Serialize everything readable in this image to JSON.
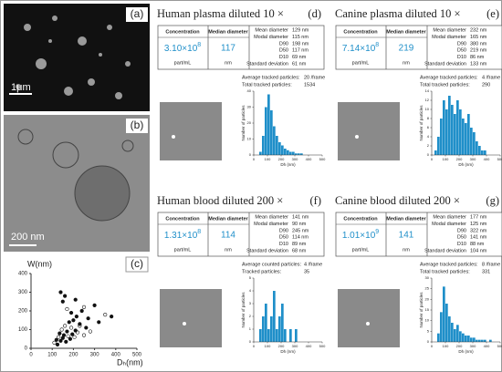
{
  "micrographs": [
    {
      "label": "(a)",
      "scale_bar": "1μm"
    },
    {
      "label": "(b)",
      "scale_bar": "200 nm"
    }
  ],
  "chart_data": {
    "type": "scatter",
    "label": "(c)",
    "y_label": "W(nm)",
    "x_label": "Dₕ(nm)",
    "x": [
      110,
      120,
      125,
      130,
      135,
      140,
      145,
      150,
      155,
      160,
      165,
      170,
      175,
      180,
      185,
      190,
      195,
      200,
      205,
      210,
      215,
      220,
      230,
      240,
      250,
      260,
      270,
      280,
      300,
      320,
      350,
      380,
      150,
      170,
      190,
      210,
      230,
      140,
      160,
      250
    ],
    "values": [
      30,
      45,
      20,
      60,
      80,
      40,
      100,
      55,
      70,
      120,
      35,
      90,
      65,
      140,
      50,
      110,
      75,
      150,
      60,
      95,
      170,
      85,
      130,
      200,
      70,
      110,
      160,
      90,
      230,
      140,
      180,
      170,
      250,
      210,
      190,
      260,
      120,
      300,
      280,
      220
    ],
    "color": "#111111",
    "xlim": [
      0,
      500
    ],
    "ylim": [
      0,
      400
    ],
    "xticks": [
      0,
      100,
      200,
      300,
      400,
      500
    ],
    "yticks": [
      0,
      100,
      200,
      300,
      400
    ]
  },
  "panels": [
    {
      "title": "Human plasma diluted  10 ×",
      "label": "(d)",
      "conc_header": "Concentration",
      "conc_mantissa": "3.10×10",
      "conc_exponent": "8",
      "conc_unit": "part/mL",
      "median_header": "Median diameter",
      "median": "117",
      "median_unit": "nm",
      "stats": [
        [
          "Mean diameter",
          "129 nm"
        ],
        [
          "Modal diameter",
          "115 nm"
        ],
        [
          "D90",
          "198 nm"
        ],
        [
          "D50",
          "117 nm"
        ],
        [
          "D10",
          "69 nm"
        ],
        [
          "Standard deviation",
          "61 nm"
        ]
      ],
      "tracked": [
        [
          "Average tracked particles:",
          "20 /frame"
        ],
        [
          "Total tracked particles:",
          "1534"
        ]
      ],
      "histogram": {
        "x_label": "Dh (nm)",
        "y_label": "Number of particles",
        "color": "#1f8fc9",
        "bins": [
          0,
          20,
          40,
          60,
          80,
          100,
          120,
          140,
          160,
          180,
          200,
          220,
          240,
          260,
          280,
          300,
          320,
          340,
          360,
          380,
          400,
          420,
          440,
          460,
          480,
          500
        ],
        "values": [
          0,
          0,
          2,
          12,
          30,
          38,
          28,
          18,
          12,
          8,
          6,
          4,
          3,
          2,
          2,
          1,
          1,
          1,
          0,
          0,
          0,
          0,
          0,
          0,
          0
        ],
        "xlim": [
          0,
          500
        ],
        "ylim": [
          0,
          40
        ],
        "xticks": [
          0,
          100,
          200,
          300,
          400,
          500
        ],
        "yticks": [
          0,
          10,
          20,
          30,
          40
        ]
      }
    },
    {
      "title": "Canine plasma diluted 10 ×",
      "label": "(e)",
      "conc_header": "Concentration",
      "conc_mantissa": "7.14×10",
      "conc_exponent": "8",
      "conc_unit": "part/mL",
      "median_header": "Median diameter",
      "median": "219",
      "median_unit": "nm",
      "stats": [
        [
          "Mean diameter",
          "232 nm"
        ],
        [
          "Modal diameter",
          "165 nm"
        ],
        [
          "D90",
          "380 nm"
        ],
        [
          "D50",
          "219 nm"
        ],
        [
          "D10",
          "86 nm"
        ],
        [
          "Standard deviation",
          "133 nm"
        ]
      ],
      "tracked": [
        [
          "Average tracked particles:",
          "4 /frame"
        ],
        [
          "Total tracked particles:",
          "290"
        ]
      ],
      "histogram": {
        "x_label": "Dh (nm)",
        "y_label": "Number of particles",
        "color": "#1f8fc9",
        "bins": [
          0,
          20,
          40,
          60,
          80,
          100,
          120,
          140,
          160,
          180,
          200,
          220,
          240,
          260,
          280,
          300,
          320,
          340,
          360,
          380,
          400,
          420,
          440,
          460,
          480,
          500
        ],
        "values": [
          0,
          1,
          4,
          8,
          12,
          10,
          13,
          11,
          9,
          12,
          10,
          8,
          7,
          9,
          6,
          5,
          3,
          2,
          1,
          1,
          0,
          0,
          0,
          0,
          0
        ],
        "xlim": [
          0,
          500
        ],
        "ylim": [
          0,
          14
        ],
        "xticks": [
          0,
          100,
          200,
          300,
          400,
          500
        ],
        "yticks": [
          0,
          2,
          4,
          6,
          8,
          10,
          12,
          14
        ]
      }
    },
    {
      "title": "Human blood diluted 200 ×",
      "label": "(f)",
      "conc_header": "Concentration",
      "conc_mantissa": "1.31×10",
      "conc_exponent": "8",
      "conc_unit": "part/mL",
      "median_header": "Median diameter",
      "median": "114",
      "median_unit": "nm",
      "stats": [
        [
          "Mean diameter",
          "141 nm"
        ],
        [
          "Modal diameter",
          "90 nm"
        ],
        [
          "D90",
          "245 nm"
        ],
        [
          "D50",
          "114 nm"
        ],
        [
          "D10",
          "89 nm"
        ],
        [
          "Standard deviation",
          "68 nm"
        ]
      ],
      "tracked": [
        [
          "Average counted particles:",
          "4 /frame"
        ],
        [
          "Tracked particles:",
          "35"
        ]
      ],
      "histogram": {
        "x_label": "Dh (nm)",
        "y_label": "Number of particles",
        "color": "#1f8fc9",
        "bins": [
          0,
          20,
          40,
          60,
          80,
          100,
          120,
          140,
          160,
          180,
          200,
          220,
          240,
          260,
          280,
          300,
          320,
          340,
          360,
          380,
          400,
          420,
          440,
          460,
          480,
          500
        ],
        "values": [
          0,
          0,
          1,
          2,
          3,
          1,
          2,
          4,
          1,
          2,
          3,
          1,
          0,
          1,
          0,
          1,
          0,
          0,
          0,
          0,
          0,
          0,
          0,
          0,
          0
        ],
        "xlim": [
          0,
          500
        ],
        "ylim": [
          0,
          5
        ],
        "xticks": [
          0,
          100,
          200,
          300,
          400,
          500
        ],
        "yticks": [
          0,
          1,
          2,
          3,
          4,
          5
        ]
      }
    },
    {
      "title": "Canine blood diluted 200 ×",
      "label": "(g)",
      "conc_header": "Concentration",
      "conc_mantissa": "1.01×10",
      "conc_exponent": "9",
      "conc_unit": "part/mL",
      "median_header": "Median diameter",
      "median": "141",
      "median_unit": "nm",
      "stats": [
        [
          "Mean diameter",
          "177 nm"
        ],
        [
          "Modal diameter",
          "125 nm"
        ],
        [
          "D90",
          "322 nm"
        ],
        [
          "D50",
          "141 nm"
        ],
        [
          "D10",
          "88 nm"
        ],
        [
          "Standard deviation",
          "104 nm"
        ]
      ],
      "tracked": [
        [
          "Average tracked particles:",
          "8 /frame"
        ],
        [
          "Total tracked particles:",
          "331"
        ]
      ],
      "histogram": {
        "x_label": "Dh (nm)",
        "y_label": "Number of particles",
        "color": "#1f8fc9",
        "bins": [
          0,
          20,
          40,
          60,
          80,
          100,
          120,
          140,
          160,
          180,
          200,
          220,
          240,
          260,
          280,
          300,
          320,
          340,
          360,
          380,
          400,
          420,
          440,
          460,
          480,
          500
        ],
        "values": [
          0,
          0,
          4,
          14,
          26,
          18,
          12,
          9,
          6,
          8,
          5,
          4,
          3,
          3,
          2,
          2,
          1,
          1,
          1,
          1,
          0,
          1,
          0,
          0,
          0
        ],
        "xlim": [
          0,
          500
        ],
        "ylim": [
          0,
          30
        ],
        "xticks": [
          0,
          100,
          200,
          300,
          400,
          500
        ],
        "yticks": [
          0,
          5,
          10,
          15,
          20,
          25,
          30
        ]
      }
    }
  ]
}
